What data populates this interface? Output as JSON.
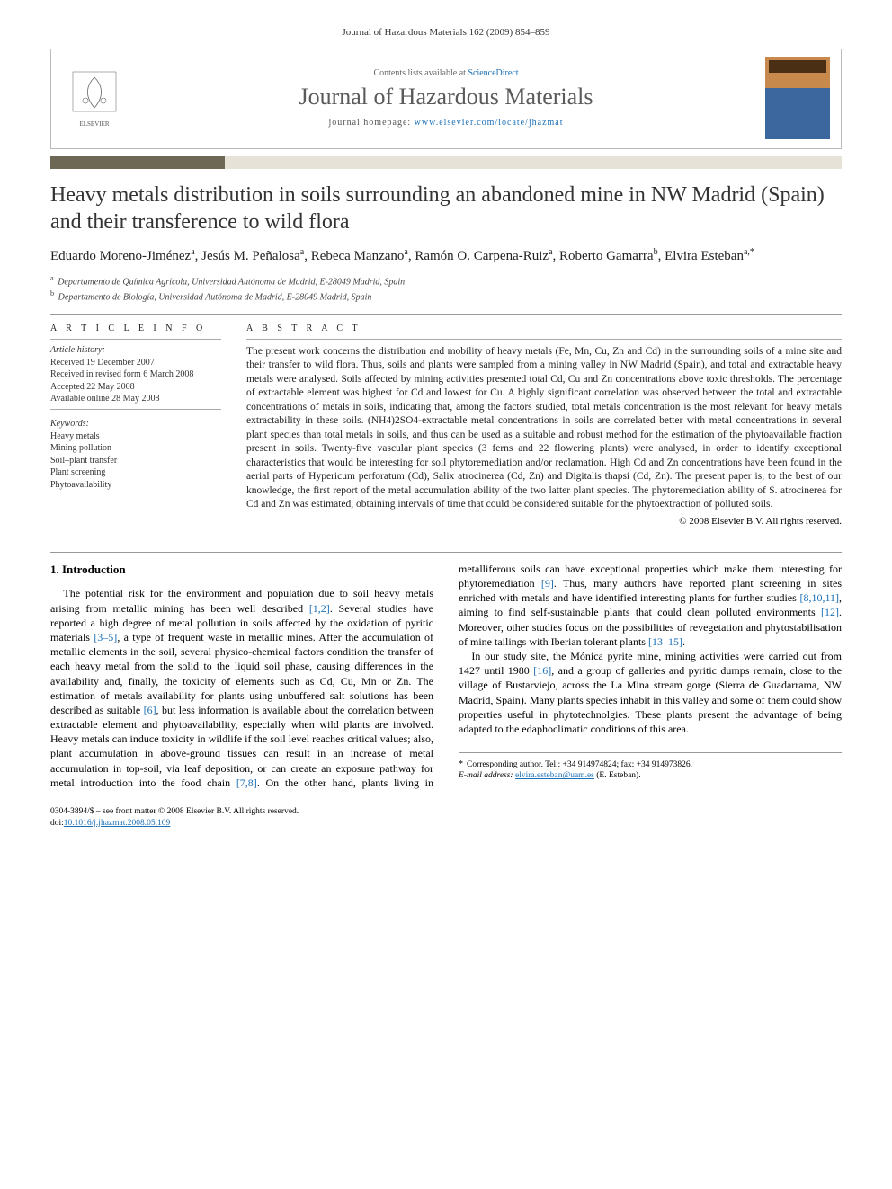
{
  "citation": "Journal of Hazardous Materials 162 (2009) 854–859",
  "header": {
    "contents_prefix": "Contents lists available at ",
    "contents_link_text": "ScienceDirect",
    "journal_name": "Journal of Hazardous Materials",
    "homepage_prefix": "journal homepage: ",
    "homepage_url": "www.elsevier.com/locate/jhazmat",
    "publisher": "ELSEVIER"
  },
  "article": {
    "title": "Heavy metals distribution in soils surrounding an abandoned mine in NW Madrid (Spain) and their transference to wild flora",
    "authors_html": "Eduardo Moreno-Jiménez<sup>a</sup>, Jesús M. Peñalosa<sup>a</sup>, Rebeca Manzano<sup>a</sup>, Ramón O. Carpena-Ruiz<sup>a</sup>, Roberto Gamarra<sup>b</sup>, Elvira Esteban<sup>a,*</sup>",
    "affiliations": [
      {
        "sup": "a",
        "text": "Departamento de Química Agrícola, Universidad Autónoma de Madrid, E-28049 Madrid, Spain"
      },
      {
        "sup": "b",
        "text": "Departamento de Biología, Universidad Autónoma de Madrid, E-28049 Madrid, Spain"
      }
    ]
  },
  "info": {
    "heading_info": "A R T I C L E   I N F O",
    "history_label": "Article history:",
    "history": [
      "Received 19 December 2007",
      "Received in revised form 6 March 2008",
      "Accepted 22 May 2008",
      "Available online 28 May 2008"
    ],
    "keywords_label": "Keywords:",
    "keywords": [
      "Heavy metals",
      "Mining pollution",
      "Soil–plant transfer",
      "Plant screening",
      "Phytoavailability"
    ]
  },
  "abstract": {
    "heading": "A B S T R A C T",
    "text": "The present work concerns the distribution and mobility of heavy metals (Fe, Mn, Cu, Zn and Cd) in the surrounding soils of a mine site and their transfer to wild flora. Thus, soils and plants were sampled from a mining valley in NW Madrid (Spain), and total and extractable heavy metals were analysed. Soils affected by mining activities presented total Cd, Cu and Zn concentrations above toxic thresholds. The percentage of extractable element was highest for Cd and lowest for Cu. A highly significant correlation was observed between the total and extractable concentrations of metals in soils, indicating that, among the factors studied, total metals concentration is the most relevant for heavy metals extractability in these soils. (NH4)2SO4-extractable metal concentrations in soils are correlated better with metal concentrations in several plant species than total metals in soils, and thus can be used as a suitable and robust method for the estimation of the phytoavailable fraction present in soils. Twenty-five vascular plant species (3 ferns and 22 flowering plants) were analysed, in order to identify exceptional characteristics that would be interesting for soil phytoremediation and/or reclamation. High Cd and Zn concentrations have been found in the aerial parts of Hypericum perforatum (Cd), Salix atrocinerea (Cd, Zn) and Digitalis thapsi (Cd, Zn). The present paper is, to the best of our knowledge, the first report of the metal accumulation ability of the two latter plant species. The phytoremediation ability of S. atrocinerea for Cd and Zn was estimated, obtaining intervals of time that could be considered suitable for the phytoextraction of polluted soils.",
    "copyright": "© 2008 Elsevier B.V. All rights reserved."
  },
  "body": {
    "section_heading": "1.  Introduction",
    "p1a": "The potential risk for the environment and population due to soil heavy metals arising from metallic mining has been well described ",
    "ref1": "[1,2]",
    "p1b": ". Several studies have reported a high degree of metal pollution in soils affected by the oxidation of pyritic materials ",
    "ref2": "[3–5]",
    "p1c": ", a type of frequent waste in metallic mines. After the accumulation of metallic elements in the soil, several physico-chemical factors condition the transfer of each heavy metal from the solid to the liquid soil phase, causing differences in the availability and, finally, the toxicity of elements such as Cd, Cu, Mn or Zn. The estimation of metals availability for plants using unbuffered salt solutions has been described as suitable ",
    "ref3": "[6]",
    "p1d": ", but less information is available about the correlation between extractable element and phytoavailability, especially when wild plants are involved. Heavy metals can induce toxicity in wildlife if the soil level reaches critical values; also, plant accumulation in above-ground tissues can result in an increase of metal accumulation in top-soil, via leaf deposition, or can create an exposure pathway for metal introduction into the food chain ",
    "ref4": "[7,8]",
    "p1e": ". On the other hand, plants living in metalliferous soils can have exceptional properties which make them interesting for phytoremediation ",
    "ref5": "[9]",
    "p1f": ". Thus, many authors have reported plant screening in sites enriched with metals and have identified interesting plants for further studies ",
    "ref6": "[8,10,11]",
    "p1g": ", aiming to find self-sustainable plants that could clean polluted environments ",
    "ref7": "[12]",
    "p1h": ". Moreover, other studies focus on the possibilities of revegetation and phytostabilisation of mine tailings with Iberian tolerant plants ",
    "ref8": "[13–15]",
    "p1i": ".",
    "p2a": "In our study site, the Mónica pyrite mine, mining activities were carried out from 1427 until 1980 ",
    "ref9": "[16]",
    "p2b": ", and a group of galleries and pyritic dumps remain, close to the village of Bustarviejo, across the La Mina stream gorge (Sierra de Guadarrama, NW Madrid, Spain). Many plants species inhabit in this valley and some of them could show properties useful in phytotechnolgies. These plants present the advantage of being adapted to the edaphoclimatic conditions of this area."
  },
  "corresponding": {
    "line1": "Corresponding author. Tel.: +34 914974824; fax: +34 914973826.",
    "email_label": "E-mail address: ",
    "email": "elvira.esteban@uam.es",
    "email_suffix": " (E. Esteban)."
  },
  "footer": {
    "left_line1": "0304-3894/$ – see front matter © 2008 Elsevier B.V. All rights reserved.",
    "doi_prefix": "doi:",
    "doi": "10.1016/j.jhazmat.2008.05.109"
  },
  "colors": {
    "link": "#1b6fb5",
    "bar_dark": "#6d6756",
    "bar_light": "#e6e2d8"
  }
}
